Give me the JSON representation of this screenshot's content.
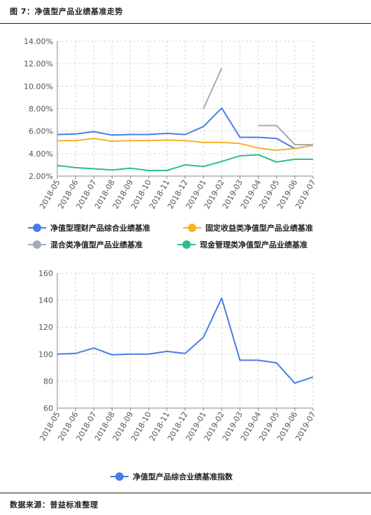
{
  "figure_title": "图 7：净值型产品业绩基准走势",
  "source_note": "数据来源：普益标准整理",
  "chart_data": [
    {
      "type": "line",
      "categories": [
        "2018-05",
        "2018-06",
        "2018-07",
        "2018-08",
        "2018-09",
        "2018-10",
        "2018-11",
        "2018-12",
        "2019-01",
        "2019-02",
        "2019-03",
        "2019-04",
        "2019-05",
        "2019-06",
        "2019-07"
      ],
      "ylim": [
        2.0,
        14.0
      ],
      "yticks": [
        "2.00%",
        "4.00%",
        "6.00%",
        "8.00%",
        "10.00%",
        "12.00%",
        "14.00%"
      ],
      "grid": true,
      "legend_position": "bottom",
      "series": [
        {
          "name": "净值型理财产品综合业绩基准",
          "color": "#4a7de4",
          "values": [
            5.7,
            5.75,
            5.95,
            5.65,
            5.7,
            5.7,
            5.8,
            5.7,
            6.4,
            8.05,
            5.45,
            5.45,
            5.35,
            4.45,
            4.75
          ]
        },
        {
          "name": "固定收益类净值型产品业绩基准",
          "color": "#f5b325",
          "values": [
            5.15,
            5.15,
            5.35,
            5.1,
            5.15,
            5.15,
            5.2,
            5.15,
            5.0,
            5.0,
            4.9,
            4.5,
            4.3,
            4.45,
            4.75
          ]
        },
        {
          "name": "混合类净值型产品业绩基准",
          "color": "#a4acb8",
          "values": [
            null,
            null,
            null,
            null,
            null,
            null,
            null,
            null,
            8.0,
            11.6,
            null,
            6.5,
            6.5,
            4.8,
            4.8
          ]
        },
        {
          "name": "现金管理类净值型产品业绩基准",
          "color": "#2bc08e",
          "values": [
            2.95,
            2.75,
            2.65,
            2.55,
            2.7,
            2.5,
            2.5,
            3.0,
            2.85,
            3.3,
            3.8,
            3.9,
            3.25,
            3.5,
            3.5
          ]
        }
      ]
    },
    {
      "type": "line",
      "categories": [
        "2018-05",
        "2018-06",
        "2018-07",
        "2018-08",
        "2018-09",
        "2018-10",
        "2018-11",
        "2018-12",
        "2019-01",
        "2019-02",
        "2019-03",
        "2019-04",
        "2019-05",
        "2019-06",
        "2019-07"
      ],
      "ylim": [
        60,
        160
      ],
      "yticks": [
        "60",
        "80",
        "100",
        "120",
        "140",
        "160"
      ],
      "grid": true,
      "legend_position": "bottom",
      "series": [
        {
          "name": "净值型产品综合业绩基准指数",
          "color": "#4a7de4",
          "values": [
            100,
            100.5,
            104.5,
            99.5,
            100,
            100,
            102,
            100.5,
            112.5,
            141.5,
            95.5,
            95.5,
            93.5,
            78.5,
            83
          ]
        }
      ]
    }
  ]
}
